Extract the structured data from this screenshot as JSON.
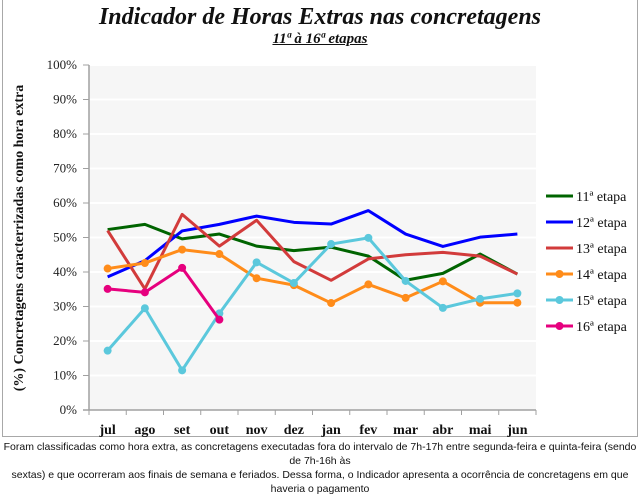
{
  "chart_data": {
    "type": "line",
    "title": "Indicador de Horas Extras nas concretagens",
    "subtitle": "11ª à 16ª etapas",
    "xlabel": "",
    "ylabel": "(%) Concretagens caracterrizadas como hora extra",
    "ylim": [
      0,
      100
    ],
    "yticks": [
      "0%",
      "10%",
      "20%",
      "30%",
      "40%",
      "50%",
      "60%",
      "70%",
      "80%",
      "90%",
      "100%"
    ],
    "grid": true,
    "legend_position": "right",
    "categories": [
      "jul",
      "ago",
      "set",
      "out",
      "nov",
      "dez",
      "jan",
      "fev",
      "mar",
      "abr",
      "mai",
      "jun"
    ],
    "series": [
      {
        "name": "11ª etapa",
        "color": "#006400",
        "markers": false,
        "values": [
          52.3,
          53.8,
          49.6,
          51.0,
          47.5,
          46.2,
          47.2,
          44.6,
          37.6,
          39.6,
          45.2,
          39.4
        ]
      },
      {
        "name": "12ª etapa",
        "color": "#0000ff",
        "markers": false,
        "values": [
          38.6,
          43.3,
          51.9,
          53.8,
          56.2,
          54.4,
          53.9,
          57.8,
          51.0,
          47.4,
          50.1,
          51.0
        ]
      },
      {
        "name": "13ª etapa",
        "color": "#d23b3b",
        "markers": false,
        "values": [
          52.0,
          35.1,
          56.7,
          47.5,
          55.0,
          43.0,
          37.6,
          43.8,
          45.0,
          45.7,
          44.6,
          39.4
        ]
      },
      {
        "name": "14ª etapa",
        "color": "#ff8c1a",
        "markers": true,
        "values": [
          41.0,
          42.6,
          46.5,
          45.2,
          38.2,
          36.2,
          31.0,
          36.4,
          32.5,
          37.3,
          31.1,
          31.1
        ]
      },
      {
        "name": "15ª etapa",
        "color": "#5bc8dc",
        "markers": true,
        "values": [
          17.2,
          29.5,
          11.5,
          28.0,
          42.8,
          36.8,
          48.1,
          49.9,
          37.4,
          29.6,
          32.2,
          33.8
        ]
      },
      {
        "name": "16ª etapa",
        "color": "#e6007e",
        "markers": true,
        "values": [
          35.1,
          34.1,
          41.2,
          26.2,
          null,
          null,
          null,
          null,
          null,
          null,
          null,
          null
        ]
      }
    ]
  },
  "footnote": {
    "line1": "Foram classificadas como hora extra, as concretagens executadas fora do intervalo de 7h-17h entre segunda-feira e quinta-feira (sendo de 7h-16h às",
    "line2": "sextas) e que ocorreram aos finais de semana e feriados. Dessa forma, o Indicador apresenta a ocorrência de concretagens em que haveria o pagamento"
  }
}
